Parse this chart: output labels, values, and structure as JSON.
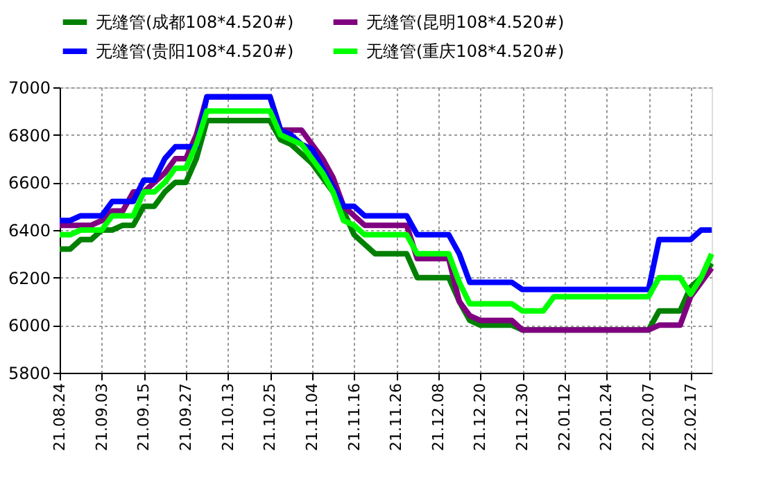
{
  "chart_data": {
    "type": "line",
    "categories": [
      "21.08.24",
      null,
      null,
      null,
      "21.09.03",
      null,
      null,
      null,
      "21.09.15",
      null,
      null,
      null,
      "21.09.27",
      null,
      null,
      null,
      "21.10.13",
      null,
      null,
      null,
      "21.10.25",
      null,
      null,
      null,
      "21.11.04",
      null,
      null,
      null,
      "21.11.16",
      null,
      null,
      null,
      "21.11.26",
      null,
      null,
      null,
      "21.12.08",
      null,
      null,
      null,
      "21.12.20",
      null,
      null,
      null,
      "21.12.30",
      null,
      null,
      null,
      "22.01.12",
      null,
      null,
      null,
      "22.01.24",
      null,
      null,
      null,
      "22.02.07",
      null,
      null,
      null,
      "22.02.17",
      null,
      null
    ],
    "series": [
      {
        "name": "无缝管(成都108*4.520#)",
        "color": "#008000",
        "values": [
          6320,
          6320,
          6360,
          6360,
          6400,
          6400,
          6420,
          6420,
          6500,
          6500,
          6560,
          6600,
          6600,
          6700,
          6860,
          6860,
          6860,
          6860,
          6860,
          6860,
          6860,
          6780,
          6760,
          6720,
          6680,
          6620,
          6560,
          6480,
          6380,
          6340,
          6300,
          6300,
          6300,
          6300,
          6200,
          6200,
          6200,
          6200,
          6100,
          6020,
          6000,
          6000,
          6000,
          6000,
          5980,
          5980,
          5980,
          5980,
          5980,
          5980,
          5980,
          5980,
          5980,
          5980,
          5980,
          5980,
          5980,
          6060,
          6060,
          6060,
          6160,
          6200,
          6260
        ]
      },
      {
        "name": "无缝管(昆明108*4.520#)",
        "color": "#800080",
        "values": [
          6420,
          6420,
          6420,
          6420,
          6440,
          6480,
          6480,
          6560,
          6560,
          6600,
          6640,
          6700,
          6700,
          6800,
          6960,
          6960,
          6960,
          6960,
          6960,
          6960,
          6960,
          6820,
          6820,
          6820,
          6760,
          6700,
          6620,
          6500,
          6460,
          6420,
          6420,
          6420,
          6420,
          6420,
          6280,
          6280,
          6280,
          6280,
          6100,
          6040,
          6020,
          6020,
          6020,
          6020,
          5980,
          5980,
          5980,
          5980,
          5980,
          5980,
          5980,
          5980,
          5980,
          5980,
          5980,
          5980,
          5980,
          6000,
          6000,
          6000,
          6120,
          6180,
          6240
        ]
      },
      {
        "name": "无缝管(贵阳108*4.520#)",
        "color": "#0000ff",
        "values": [
          6440,
          6440,
          6460,
          6460,
          6460,
          6520,
          6520,
          6520,
          6610,
          6610,
          6700,
          6750,
          6750,
          6750,
          6960,
          6960,
          6960,
          6960,
          6960,
          6960,
          6960,
          6820,
          6800,
          6760,
          6740,
          6660,
          6580,
          6500,
          6500,
          6460,
          6460,
          6460,
          6460,
          6460,
          6380,
          6380,
          6380,
          6380,
          6300,
          6180,
          6180,
          6180,
          6180,
          6180,
          6150,
          6150,
          6150,
          6150,
          6150,
          6150,
          6150,
          6150,
          6150,
          6150,
          6150,
          6150,
          6150,
          6360,
          6360,
          6360,
          6360,
          6400,
          6400
        ]
      },
      {
        "name": "无缝管(重庆108*4.520#)",
        "color": "#00ff00",
        "values": [
          6380,
          6380,
          6400,
          6400,
          6400,
          6460,
          6460,
          6460,
          6560,
          6560,
          6600,
          6660,
          6660,
          6760,
          6900,
          6900,
          6900,
          6900,
          6900,
          6900,
          6900,
          6800,
          6780,
          6760,
          6700,
          6640,
          6560,
          6440,
          6420,
          6380,
          6380,
          6380,
          6380,
          6380,
          6300,
          6300,
          6300,
          6300,
          6180,
          6090,
          6090,
          6090,
          6090,
          6090,
          6060,
          6060,
          6060,
          6120,
          6120,
          6120,
          6120,
          6120,
          6120,
          6120,
          6120,
          6120,
          6120,
          6200,
          6200,
          6200,
          6130,
          6200,
          6300
        ]
      }
    ],
    "ylim": [
      5800,
      7000
    ],
    "yticks": [
      5800,
      6000,
      6200,
      6400,
      6600,
      6800,
      7000
    ],
    "grid": true,
    "legend": "top",
    "marker": "none",
    "line_style": "solid"
  }
}
